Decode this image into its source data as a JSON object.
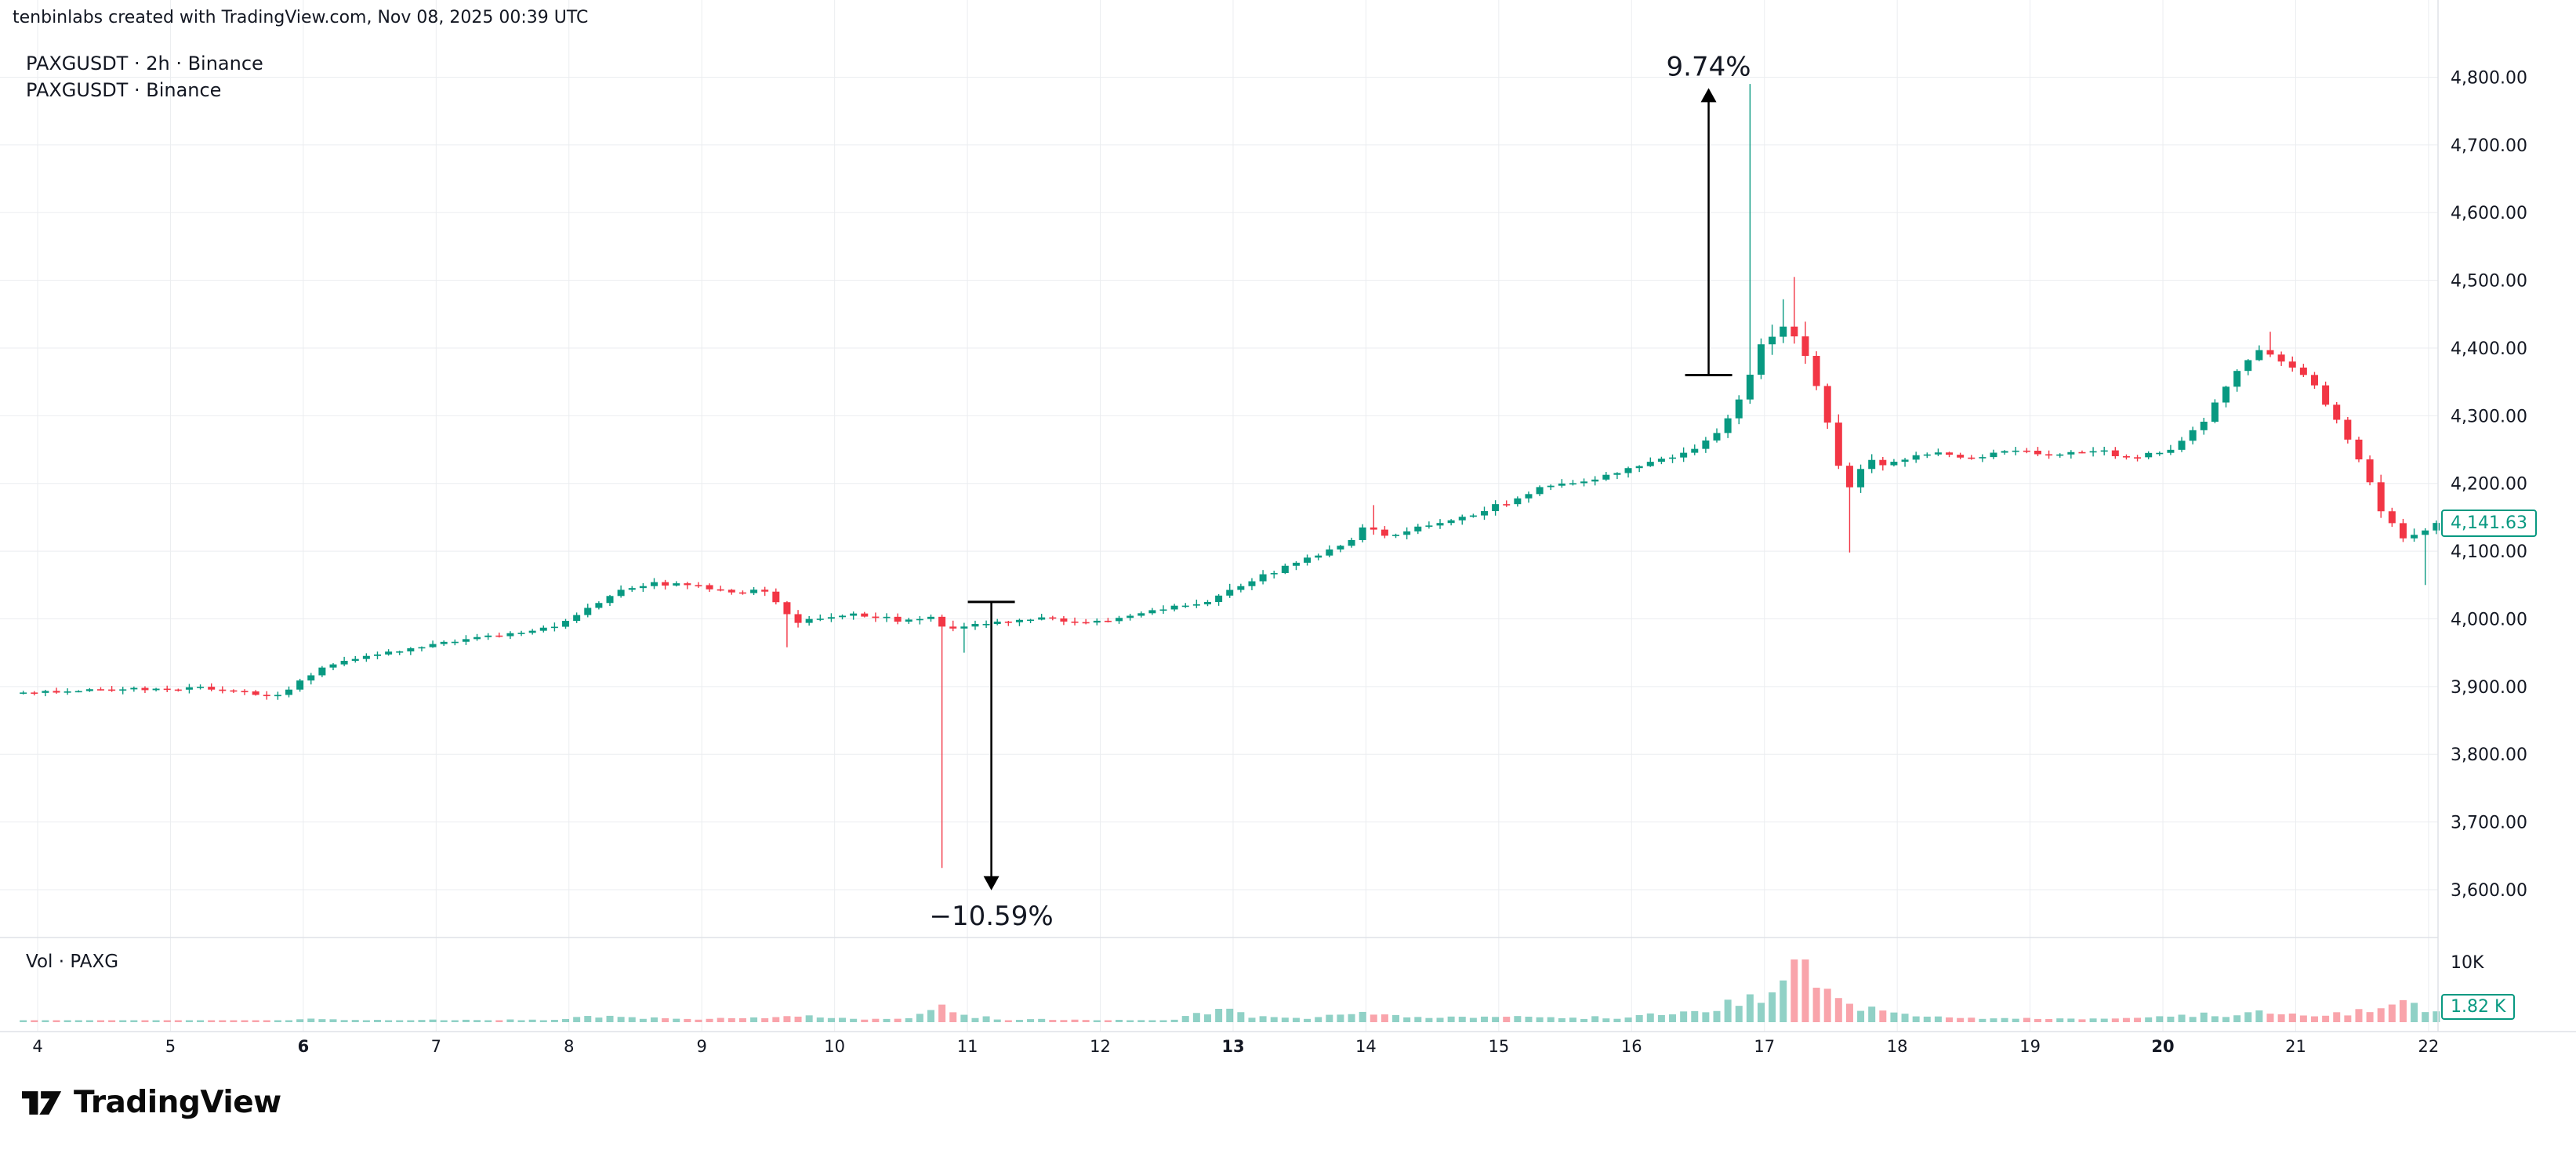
{
  "header": {
    "attribution": "tenbinlabs created with TradingView.com, Nov 08, 2025 00:39 UTC"
  },
  "legend": {
    "line1": "PAXGUSDT · 2h · Binance",
    "line2": "PAXGUSDT · Binance"
  },
  "price_badge": {
    "text": "4,141.63"
  },
  "volume_pane": {
    "label": "Vol · PAXG",
    "axis_label": "10K",
    "badge": "1.82 K",
    "max": 10000
  },
  "footer": {
    "brand": "TradingView"
  },
  "colors": {
    "up": "#089981",
    "down": "#f23645",
    "up_volume": "rgba(8,153,129,0.45)",
    "down_volume": "rgba(242,54,69,0.45)",
    "grid": "#ebedf0",
    "axis_line": "#dfe2e7",
    "text": "#131722",
    "annotation": "#000000",
    "badge_border": "#089981"
  },
  "price_axis": {
    "labels": [
      {
        "value": 4800,
        "label": "4,800.00"
      },
      {
        "value": 4700,
        "label": "4,700.00"
      },
      {
        "value": 4600,
        "label": "4,600.00"
      },
      {
        "value": 4500,
        "label": "4,500.00"
      },
      {
        "value": 4400,
        "label": "4,400.00"
      },
      {
        "value": 4300,
        "label": "4,300.00"
      },
      {
        "value": 4200,
        "label": "4,200.00"
      },
      {
        "value": 4100,
        "label": "4,100.00"
      },
      {
        "value": 4000,
        "label": "4,000.00"
      },
      {
        "value": 3900,
        "label": "3,900.00"
      },
      {
        "value": 3800,
        "label": "3,800.00"
      },
      {
        "value": 3700,
        "label": "3,700.00"
      },
      {
        "value": 3600,
        "label": "3,600.00"
      }
    ]
  },
  "time_axis": {
    "ticks": [
      {
        "day": 4,
        "label": "4",
        "bold": false
      },
      {
        "day": 5,
        "label": "5",
        "bold": false
      },
      {
        "day": 6,
        "label": "6",
        "bold": true
      },
      {
        "day": 7,
        "label": "7",
        "bold": false
      },
      {
        "day": 8,
        "label": "8",
        "bold": false
      },
      {
        "day": 9,
        "label": "9",
        "bold": false
      },
      {
        "day": 10,
        "label": "10",
        "bold": false
      },
      {
        "day": 11,
        "label": "11",
        "bold": false
      },
      {
        "day": 12,
        "label": "12",
        "bold": false
      },
      {
        "day": 13,
        "label": "13",
        "bold": true
      },
      {
        "day": 14,
        "label": "14",
        "bold": false
      },
      {
        "day": 15,
        "label": "15",
        "bold": false
      },
      {
        "day": 16,
        "label": "16",
        "bold": false
      },
      {
        "day": 17,
        "label": "17",
        "bold": false
      },
      {
        "day": 18,
        "label": "18",
        "bold": false
      },
      {
        "day": 19,
        "label": "19",
        "bold": false
      },
      {
        "day": 20,
        "label": "20",
        "bold": true
      },
      {
        "day": 21,
        "label": "21",
        "bold": false
      },
      {
        "day": 22,
        "label": "22",
        "bold": false
      }
    ]
  },
  "chart_data": {
    "type": "candlestick",
    "symbol": "PAXGUSDT",
    "interval": "2h",
    "exchange": "Binance",
    "last_price": 4141.63,
    "last_volume": 1820,
    "x_domain_days": [
      3.85,
      22.06
    ],
    "y_domain": [
      3600,
      4800
    ],
    "volume_axis_max": 10000,
    "price_keyframes": [
      [
        3.85,
        3890
      ],
      [
        4.3,
        3893
      ],
      [
        4.8,
        3896
      ],
      [
        5.2,
        3898
      ],
      [
        5.55,
        3894
      ],
      [
        5.85,
        3885
      ],
      [
        6.0,
        3908
      ],
      [
        6.25,
        3932
      ],
      [
        6.6,
        3948
      ],
      [
        7.0,
        3962
      ],
      [
        7.35,
        3975
      ],
      [
        7.7,
        3978
      ],
      [
        8.0,
        3992
      ],
      [
        8.2,
        4018
      ],
      [
        8.45,
        4042
      ],
      [
        8.7,
        4052
      ],
      [
        9.0,
        4048
      ],
      [
        9.3,
        4038
      ],
      [
        9.5,
        4046
      ],
      [
        9.62,
        4018
      ],
      [
        9.75,
        3992
      ],
      [
        9.95,
        4002
      ],
      [
        10.2,
        4008
      ],
      [
        10.5,
        3998
      ],
      [
        10.75,
        4002
      ],
      [
        10.9,
        3982
      ],
      [
        11.05,
        3990
      ],
      [
        11.3,
        3996
      ],
      [
        11.6,
        4002
      ],
      [
        11.9,
        3996
      ],
      [
        12.2,
        4000
      ],
      [
        12.5,
        4014
      ],
      [
        12.8,
        4022
      ],
      [
        13.0,
        4038
      ],
      [
        13.3,
        4066
      ],
      [
        13.6,
        4088
      ],
      [
        13.9,
        4112
      ],
      [
        14.05,
        4142
      ],
      [
        14.2,
        4118
      ],
      [
        14.5,
        4138
      ],
      [
        14.8,
        4152
      ],
      [
        15.1,
        4172
      ],
      [
        15.4,
        4196
      ],
      [
        15.7,
        4202
      ],
      [
        16.0,
        4222
      ],
      [
        16.3,
        4238
      ],
      [
        16.55,
        4256
      ],
      [
        16.75,
        4288
      ],
      [
        16.9,
        4338
      ],
      [
        17.0,
        4398
      ],
      [
        17.15,
        4428
      ],
      [
        17.3,
        4412
      ],
      [
        17.45,
        4338
      ],
      [
        17.55,
        4262
      ],
      [
        17.65,
        4182
      ],
      [
        17.8,
        4232
      ],
      [
        18.0,
        4228
      ],
      [
        18.3,
        4246
      ],
      [
        18.6,
        4238
      ],
      [
        18.9,
        4248
      ],
      [
        19.2,
        4242
      ],
      [
        19.5,
        4250
      ],
      [
        19.8,
        4238
      ],
      [
        20.1,
        4248
      ],
      [
        20.35,
        4292
      ],
      [
        20.55,
        4356
      ],
      [
        20.75,
        4398
      ],
      [
        20.95,
        4382
      ],
      [
        21.15,
        4356
      ],
      [
        21.35,
        4292
      ],
      [
        21.55,
        4222
      ],
      [
        21.7,
        4152
      ],
      [
        21.85,
        4118
      ],
      [
        22.0,
        4128
      ],
      [
        22.06,
        4141.63
      ]
    ],
    "volume_keyframes": [
      [
        3.85,
        120
      ],
      [
        5.0,
        140
      ],
      [
        5.9,
        200
      ],
      [
        6.1,
        520
      ],
      [
        6.5,
        300
      ],
      [
        7.0,
        320
      ],
      [
        7.5,
        280
      ],
      [
        8.0,
        520
      ],
      [
        8.3,
        1000
      ],
      [
        8.7,
        560
      ],
      [
        9.0,
        420
      ],
      [
        9.6,
        760
      ],
      [
        9.8,
        880
      ],
      [
        10.2,
        420
      ],
      [
        10.6,
        520
      ],
      [
        10.85,
        2600
      ],
      [
        11.0,
        1150
      ],
      [
        11.3,
        520
      ],
      [
        11.8,
        320
      ],
      [
        12.2,
        280
      ],
      [
        12.6,
        420
      ],
      [
        13.0,
        2300
      ],
      [
        13.2,
        760
      ],
      [
        13.6,
        560
      ],
      [
        14.05,
        1500
      ],
      [
        14.4,
        620
      ],
      [
        14.8,
        720
      ],
      [
        15.2,
        820
      ],
      [
        15.6,
        680
      ],
      [
        16.0,
        920
      ],
      [
        16.4,
        1250
      ],
      [
        16.7,
        1950
      ],
      [
        16.9,
        4200
      ],
      [
        17.05,
        5600
      ],
      [
        17.2,
        7400
      ],
      [
        17.35,
        9400
      ],
      [
        17.5,
        5200
      ],
      [
        17.7,
        2600
      ],
      [
        17.9,
        1650
      ],
      [
        18.3,
        720
      ],
      [
        18.8,
        560
      ],
      [
        19.3,
        460
      ],
      [
        19.8,
        560
      ],
      [
        20.2,
        1150
      ],
      [
        20.5,
        1350
      ],
      [
        20.8,
        1450
      ],
      [
        21.1,
        920
      ],
      [
        21.4,
        1250
      ],
      [
        21.6,
        2750
      ],
      [
        21.8,
        3100
      ],
      [
        21.95,
        2450
      ],
      [
        22.06,
        1820
      ]
    ],
    "special_wicks": [
      {
        "day": 9.65,
        "low": 3958
      },
      {
        "day": 10.85,
        "low": 3632
      },
      {
        "day": 10.95,
        "low": 3950
      },
      {
        "day": 14.08,
        "high": 4168
      },
      {
        "day": 16.9,
        "high": 4790
      },
      {
        "day": 17.15,
        "high": 4472
      },
      {
        "day": 17.22,
        "high": 4505
      },
      {
        "day": 17.65,
        "low": 4098
      },
      {
        "day": 20.8,
        "high": 4424
      },
      {
        "day": 21.95,
        "low": 4050
      }
    ],
    "annotations": [
      {
        "label": "9.74%",
        "day": 16.58,
        "from_price": 4360,
        "to_price": 4784,
        "direction": "up"
      },
      {
        "label": "−10.59%",
        "day": 11.18,
        "from_price": 4025,
        "to_price": 3599,
        "direction": "down"
      }
    ]
  }
}
